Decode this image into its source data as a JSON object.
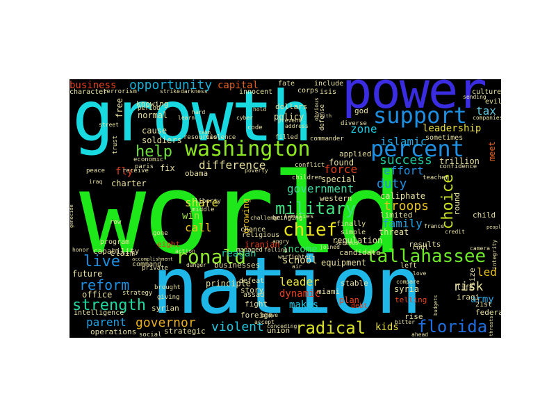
{
  "words": [
    {
      "text": "world",
      "color": "#1ee81a"
    },
    {
      "text": "nation",
      "color": "#1fb7e8"
    },
    {
      "text": "growth",
      "color": "#18d8e0"
    },
    {
      "text": "power",
      "color": "#3a2ce0"
    },
    {
      "text": "washington",
      "color": "#8ee820"
    },
    {
      "text": "percent",
      "color": "#1e8fe0"
    },
    {
      "text": "support",
      "color": "#1e8fe0"
    },
    {
      "text": "tallahassee",
      "color": "#6ee82a"
    },
    {
      "text": "ronald",
      "color": "#8ee830"
    },
    {
      "text": "military",
      "color": "#40e080"
    },
    {
      "text": "chief",
      "color": "#e8e020"
    },
    {
      "text": "choice",
      "color": "#c8e020"
    },
    {
      "text": "florida",
      "color": "#1e6ee0"
    },
    {
      "text": "radical",
      "color": "#d8e028"
    },
    {
      "text": "strength",
      "color": "#20d8a0"
    },
    {
      "text": "reform",
      "color": "#1e8fe0"
    },
    {
      "text": "governor",
      "color": "#e8b020"
    },
    {
      "text": "live",
      "color": "#1e8fe0"
    },
    {
      "text": "help",
      "color": "#70e040"
    },
    {
      "text": "opportunity",
      "color": "#18b0d8"
    },
    {
      "text": "business",
      "color": "#e84020"
    },
    {
      "text": "capital",
      "color": "#e86020"
    },
    {
      "text": "tax",
      "color": "#60c8e0"
    },
    {
      "text": "leadership",
      "color": "#e8e040"
    },
    {
      "text": "zone",
      "color": "#20c8e0"
    },
    {
      "text": "islamic",
      "color": "#20a8e0"
    },
    {
      "text": "success",
      "color": "#20c8a0"
    },
    {
      "text": "effort",
      "color": "#2090e0"
    },
    {
      "text": "duty",
      "color": "#2090e0"
    },
    {
      "text": "government",
      "color": "#40d8a0"
    },
    {
      "text": "troops",
      "color": "#e8c020"
    },
    {
      "text": "family",
      "color": "#20a0e0"
    },
    {
      "text": "force",
      "color": "#e04020"
    },
    {
      "text": "difference",
      "color": "#e8e0a0"
    },
    {
      "text": "share",
      "color": "#e8e040"
    },
    {
      "text": "win",
      "color": "#a0e040"
    },
    {
      "text": "call",
      "color": "#e8c020"
    },
    {
      "text": "reagan",
      "color": "#20c8a0"
    },
    {
      "text": "income",
      "color": "#40e080"
    },
    {
      "text": "school",
      "color": "#e8e0a0"
    },
    {
      "text": "leader",
      "color": "#e8e040"
    },
    {
      "text": "dynamic",
      "color": "#e84020"
    },
    {
      "text": "makes",
      "color": "#20c8e0"
    },
    {
      "text": "violent",
      "color": "#20c8e0"
    },
    {
      "text": "parent",
      "color": "#20a0e0"
    },
    {
      "text": "army",
      "color": "#20a0e0"
    },
    {
      "text": "led",
      "color": "#e8c020"
    },
    {
      "text": "risk",
      "color": "#e8e0a0"
    },
    {
      "text": "kids",
      "color": "#e8e040"
    },
    {
      "text": "fly",
      "color": "#e84020"
    },
    {
      "text": "charter",
      "color": "#e8e0a0"
    },
    {
      "text": "fix",
      "color": "#e8e0a0"
    },
    {
      "text": "claim",
      "color": "#e8e0a0"
    },
    {
      "text": "syria",
      "color": "#e8e0a0"
    },
    {
      "text": "threat",
      "color": "#e8e0a0"
    },
    {
      "text": "equipment",
      "color": "#e8e0a0"
    },
    {
      "text": "regulation",
      "color": "#e8e0a0"
    },
    {
      "text": "special",
      "color": "#e8e0a0"
    },
    {
      "text": "found",
      "color": "#e8e0a0"
    },
    {
      "text": "growing",
      "color": "#e8c020"
    },
    {
      "text": "meet",
      "color": "#e86020"
    },
    {
      "text": "trillion",
      "color": "#e8e0a0"
    },
    {
      "text": "caliphate",
      "color": "#e8e0a0"
    },
    {
      "text": "iranian",
      "color": "#e84020"
    },
    {
      "text": "eight",
      "color": "#e84020"
    },
    {
      "text": "cause",
      "color": "#e8e0a0"
    },
    {
      "text": "normal",
      "color": "#e8e0a0"
    },
    {
      "text": "policy",
      "color": "#e8e0a0"
    },
    {
      "text": "dollars",
      "color": "#e8e0a0"
    },
    {
      "text": "soldiers",
      "color": "#e8e0a0"
    },
    {
      "text": "strategic",
      "color": "#e8e0a0"
    },
    {
      "text": "office",
      "color": "#e8e0a0"
    },
    {
      "text": "future",
      "color": "#e8e0a0"
    },
    {
      "text": "principle",
      "color": "#e8e0a0"
    },
    {
      "text": "story",
      "color": "#e8e0a0"
    },
    {
      "text": "limited",
      "color": "#e8e0a0"
    },
    {
      "text": "western",
      "color": "#e8e0a0"
    },
    {
      "text": "god",
      "color": "#e8e0a0"
    },
    {
      "text": "free",
      "color": "#e8e0a0"
    },
    {
      "text": "knowing",
      "color": "#e8e0a0"
    },
    {
      "text": "obama",
      "color": "#e8e0a0"
    },
    {
      "text": "size",
      "color": "#e8e0a0"
    },
    {
      "text": "round",
      "color": "#e8e0a0"
    },
    {
      "text": "child",
      "color": "#e8e0a0"
    },
    {
      "text": "plan",
      "color": "#e84020"
    },
    {
      "text": "results",
      "color": "#e8e0a0"
    },
    {
      "text": "applied",
      "color": "#e8e0a0"
    },
    {
      "text": "fight",
      "color": "#e8e0a0"
    },
    {
      "text": "telling",
      "color": "#e84020"
    },
    {
      "text": "iraqi",
      "color": "#e8e0a0"
    },
    {
      "text": "federal",
      "color": "#e8e0a0"
    },
    {
      "text": "rise",
      "color": "#e8e0a0"
    },
    {
      "text": "union",
      "color": "#e8e0a0"
    },
    {
      "text": "foreign",
      "color": "#e8e0a0"
    },
    {
      "text": "operations",
      "color": "#e8e0a0"
    },
    {
      "text": "intelligence",
      "color": "#e8e0a0"
    },
    {
      "text": "syrian",
      "color": "#e8e0a0"
    },
    {
      "text": "capability",
      "color": "#e8e0a0"
    },
    {
      "text": "program",
      "color": "#e8e0a0"
    },
    {
      "text": "command",
      "color": "#e8e0a0"
    },
    {
      "text": "businesses",
      "color": "#e8e0a0"
    },
    {
      "text": "religious",
      "color": "#e8e0a0"
    },
    {
      "text": "chance",
      "color": "#e8e0a0"
    },
    {
      "text": "candidate",
      "color": "#e8e0a0"
    },
    {
      "text": "stable",
      "color": "#e8e0a0"
    },
    {
      "text": "miami",
      "color": "#e8e0a0"
    },
    {
      "text": "debt",
      "color": "#e84020"
    },
    {
      "text": "assad",
      "color": "#e8e0a0"
    },
    {
      "text": "defeat",
      "color": "#e8e0a0"
    },
    {
      "text": "simple",
      "color": "#e8e0a0"
    },
    {
      "text": "finally",
      "color": "#e8e0a0"
    },
    {
      "text": "cool",
      "color": "#e8e0a0"
    },
    {
      "text": "life",
      "color": "#e8e0a0"
    },
    {
      "text": "21st",
      "color": "#e8e0a0"
    },
    {
      "text": "left",
      "color": "#e8e0a0"
    },
    {
      "text": "isis",
      "color": "#e8e0a0"
    },
    {
      "text": "fate",
      "color": "#e8e0a0"
    },
    {
      "text": "corps",
      "color": "#e8e0a0"
    },
    {
      "text": "include",
      "color": "#e8e0a0"
    },
    {
      "text": "culture",
      "color": "#e8e0a0"
    },
    {
      "text": "evil",
      "color": "#e8e0a0"
    },
    {
      "text": "sometimes",
      "color": "#e8e0a0"
    },
    {
      "text": "character",
      "color": "#e8e0a0"
    },
    {
      "text": "terrorism",
      "color": "#e8e0a0"
    },
    {
      "text": "innocent",
      "color": "#e8e0a0"
    },
    {
      "text": "period",
      "color": "#e8e0a0"
    },
    {
      "text": "resources",
      "color": "#e8e0a0"
    },
    {
      "text": "violence",
      "color": "#e8e0a0"
    },
    {
      "text": "code",
      "color": "#e8e0a0"
    },
    {
      "text": "filled",
      "color": "#e8e0a0"
    },
    {
      "text": "commander",
      "color": "#e8e0a0"
    },
    {
      "text": "defense",
      "color": "#e8e0a0"
    },
    {
      "text": "diverse",
      "color": "#e8e0a0"
    },
    {
      "text": "trust",
      "color": "#e8e0a0"
    },
    {
      "text": "economic",
      "color": "#e8e0a0"
    },
    {
      "text": "paris",
      "color": "#e8e0a0"
    },
    {
      "text": "peace",
      "color": "#e8e0a0"
    },
    {
      "text": "receive",
      "color": "#e8e0a0"
    },
    {
      "text": "conflict",
      "color": "#e8e0a0"
    },
    {
      "text": "confidence",
      "color": "#e8e0a0"
    },
    {
      "text": "teacher",
      "color": "#e8e0a0"
    },
    {
      "text": "children",
      "color": "#e8e0a0"
    },
    {
      "text": "families",
      "color": "#e8e0a0"
    },
    {
      "text": "bringing",
      "color": "#e8e0a0"
    },
    {
      "text": "middle",
      "color": "#e8e0a0"
    },
    {
      "text": "liberty",
      "color": "#e8e0a0"
    },
    {
      "text": "gone",
      "color": "#e8e0a0"
    },
    {
      "text": "row",
      "color": "#e8e0a0"
    },
    {
      "text": "iraq",
      "color": "#e8e0a0"
    },
    {
      "text": "managed",
      "color": "#e8e0a0"
    },
    {
      "text": "brought",
      "color": "#e8e0a0"
    },
    {
      "text": "giving",
      "color": "#e8e0a0"
    },
    {
      "text": "private",
      "color": "#e8e0a0"
    },
    {
      "text": "strategy",
      "color": "#e8e0a0"
    },
    {
      "text": "social",
      "color": "#e8e0a0"
    },
    {
      "text": "brave",
      "color": "#e8e0a0"
    },
    {
      "text": "accept",
      "color": "#e8e0a0"
    },
    {
      "text": "conceding",
      "color": "#e8e0a0"
    },
    {
      "text": "ahead",
      "color": "#e8e0a0"
    },
    {
      "text": "bitter",
      "color": "#e8e0a0"
    },
    {
      "text": "compare",
      "color": "#e8e0a0"
    },
    {
      "text": "love",
      "color": "#e8e0a0"
    },
    {
      "text": "camera",
      "color": "#e8e0a0"
    },
    {
      "text": "credit",
      "color": "#e8e0a0"
    },
    {
      "text": "integrity",
      "color": "#e8e0a0"
    },
    {
      "text": "sending",
      "color": "#e8e0a0"
    },
    {
      "text": "companies",
      "color": "#e8e0a0"
    },
    {
      "text": "street",
      "color": "#e8e0a0"
    },
    {
      "text": "strike",
      "color": "#e8e0a0"
    },
    {
      "text": "darkness",
      "color": "#e8e0a0"
    },
    {
      "text": "learn",
      "color": "#e8e0a0"
    },
    {
      "text": "hold",
      "color": "#e8e0a0"
    },
    {
      "text": "cyber",
      "color": "#e8e0a0"
    },
    {
      "text": "address",
      "color": "#e8e0a0"
    },
    {
      "text": "prevent",
      "color": "#e8e0a0"
    },
    {
      "text": "honor",
      "color": "#e8e0a0"
    },
    {
      "text": "action",
      "color": "#e8e0a0"
    },
    {
      "text": "danger",
      "color": "#e8e0a0"
    },
    {
      "text": "falling",
      "color": "#e8e0a0"
    },
    {
      "text": "angry",
      "color": "#e8e0a0"
    },
    {
      "text": "warfighter",
      "color": "#e8e0a0"
    },
    {
      "text": "joined",
      "color": "#e8e0a0"
    },
    {
      "text": "serious",
      "color": "#e8e0a0"
    },
    {
      "text": "challenge",
      "color": "#e8e0a0"
    },
    {
      "text": "poverty",
      "color": "#e8e0a0"
    },
    {
      "text": "accomplishment",
      "color": "#e8e0a0"
    },
    {
      "text": "air",
      "color": "#e8e0a0"
    },
    {
      "text": "france",
      "color": "#e8e0a0"
    },
    {
      "text": "obvious",
      "color": "#e8e0a0"
    },
    {
      "text": "hard",
      "color": "#e8e0a0"
    },
    {
      "text": "budgets",
      "color": "#e8e0a0"
    },
    {
      "text": "threats",
      "color": "#e8e0a0"
    },
    {
      "text": "team",
      "color": "#e8e0a0"
    },
    {
      "text": "faith",
      "color": "#e8e0a0"
    },
    {
      "text": "people",
      "color": "#e8e0a0"
    },
    {
      "text": "genocide",
      "color": "#e8e0a0"
    }
  ]
}
